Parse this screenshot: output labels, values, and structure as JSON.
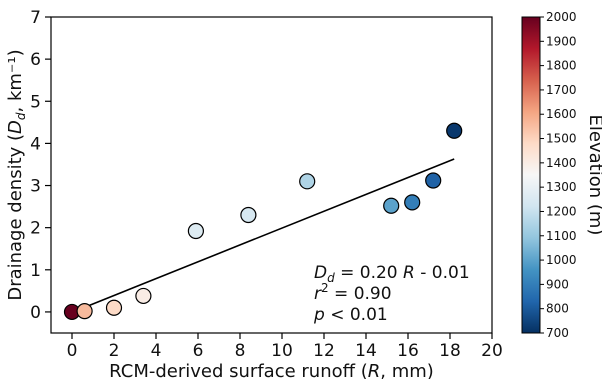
{
  "chart_data": {
    "type": "scatter",
    "xlabel": "RCM-derived surface runoff (R, mm)",
    "ylabel": "Drainage density (Dd, km⁻¹)",
    "xlim": [
      -1,
      20
    ],
    "ylim": [
      -0.5,
      7
    ],
    "xticks": [
      0,
      2,
      4,
      6,
      8,
      10,
      12,
      14,
      16,
      18,
      20
    ],
    "yticks": [
      0,
      1,
      2,
      3,
      4,
      5,
      6,
      7
    ],
    "grid": false,
    "points": [
      {
        "x": 0.0,
        "y": 0.0,
        "elevation": 2000
      },
      {
        "x": 0.6,
        "y": 0.02,
        "elevation": 1560
      },
      {
        "x": 2.0,
        "y": 0.1,
        "elevation": 1480
      },
      {
        "x": 3.4,
        "y": 0.38,
        "elevation": 1400
      },
      {
        "x": 5.9,
        "y": 1.92,
        "elevation": 1260
      },
      {
        "x": 8.4,
        "y": 2.3,
        "elevation": 1240
      },
      {
        "x": 11.2,
        "y": 3.1,
        "elevation": 1150
      },
      {
        "x": 15.2,
        "y": 2.52,
        "elevation": 1000
      },
      {
        "x": 16.2,
        "y": 2.6,
        "elevation": 900
      },
      {
        "x": 17.2,
        "y": 3.12,
        "elevation": 820
      },
      {
        "x": 18.2,
        "y": 4.3,
        "elevation": 720
      }
    ],
    "fit_line": {
      "slope": 0.2,
      "intercept": -0.01,
      "x_range": [
        0,
        18.2
      ]
    },
    "annotation": {
      "line1": "Dd = 0.20 R - 0.01",
      "line2": "r² = 0.90",
      "line3": "p < 0.01"
    },
    "colorbar": {
      "label": "Elevation (m)",
      "range": [
        700,
        2000
      ],
      "ticks": [
        700,
        800,
        900,
        1000,
        1100,
        1200,
        1300,
        1400,
        1500,
        1600,
        1700,
        1800,
        1900,
        2000
      ],
      "colormap": "RdBu_r",
      "colors": [
        "#053061",
        "#2166ac",
        "#4393c3",
        "#92c5de",
        "#d1e5f0",
        "#f7f7f7",
        "#fddbc7",
        "#f4a582",
        "#d6604d",
        "#b2182b",
        "#67001f"
      ]
    }
  }
}
